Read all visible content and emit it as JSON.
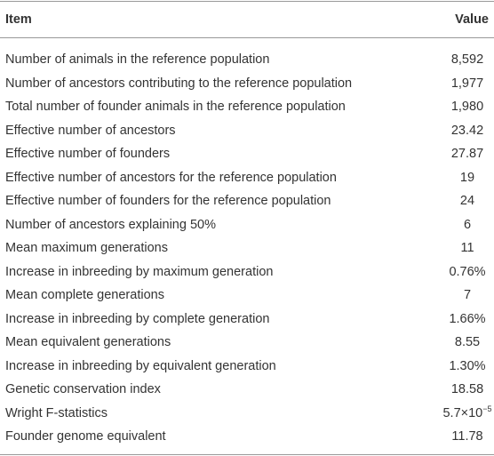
{
  "table": {
    "header": [
      "Item",
      "Value"
    ],
    "rows": [
      {
        "item": "Number of animals in the reference population",
        "value": "8,592"
      },
      {
        "item": "Number of ancestors contributing to the reference population",
        "value": "1,977"
      },
      {
        "item": "Total number of founder animals in the reference population",
        "value": "1,980"
      },
      {
        "item": "Effective number of ancestors",
        "value": "23.42"
      },
      {
        "item": "Effective number of founders",
        "value": "27.87"
      },
      {
        "item": "Effective number of ancestors for the reference population",
        "value": "19"
      },
      {
        "item": "Effective number of founders for the reference population",
        "value": "24"
      },
      {
        "item": "Number of ancestors explaining 50%",
        "value": "6"
      },
      {
        "item": "Mean maximum generations",
        "value": "11"
      },
      {
        "item": "Increase in inbreeding by maximum generation",
        "value": "0.76%"
      },
      {
        "item": "Mean complete generations",
        "value": "7"
      },
      {
        "item": "Increase in inbreeding by complete generation",
        "value": "1.66%"
      },
      {
        "item": "Mean equivalent generations",
        "value": "8.55"
      },
      {
        "item": "Increase in inbreeding by equivalent generation",
        "value": "1.30%"
      },
      {
        "item": "Genetic conservation index",
        "value": "18.58"
      },
      {
        "item": "Wright F-statistics",
        "value": {
          "base": "5.7×10",
          "exponent": "−5"
        }
      },
      {
        "item": "Founder genome equivalent",
        "value": "11.78"
      }
    ]
  }
}
